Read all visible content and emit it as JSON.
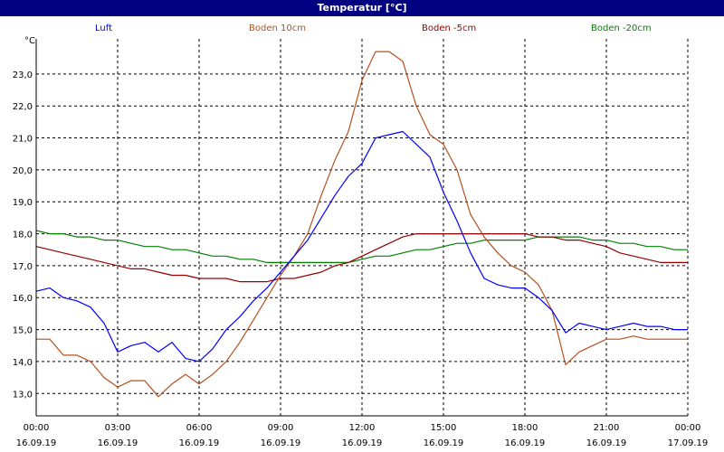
{
  "window": {
    "title": "Temperatur [°C]"
  },
  "colors": {
    "luft": "#0000ff",
    "boden10": "#b4501e",
    "bodenM5": "#960000",
    "bodenM20": "#008000",
    "grid": "#000000",
    "titlebar": "#000080"
  },
  "chart_data": {
    "type": "line",
    "title": "Temperatur [°C]",
    "ylabel": "°C",
    "xlabel": "",
    "ylim": [
      12.3,
      24.1
    ],
    "xlim": [
      "2019-09-16 00:00",
      "2019-09-17 00:00"
    ],
    "grid": true,
    "legend_placement": "top",
    "y_ticks": [
      "13,0",
      "14,0",
      "15,0",
      "16,0",
      "17,0",
      "18,0",
      "19,0",
      "20,0",
      "21,0",
      "22,0",
      "23,0"
    ],
    "x_ticks": [
      {
        "time": "00:00",
        "date": "16.09.19"
      },
      {
        "time": "03:00",
        "date": "16.09.19"
      },
      {
        "time": "06:00",
        "date": "16.09.19"
      },
      {
        "time": "09:00",
        "date": "16.09.19"
      },
      {
        "time": "12:00",
        "date": "16.09.19"
      },
      {
        "time": "15:00",
        "date": "16.09.19"
      },
      {
        "time": "18:00",
        "date": "16.09.19"
      },
      {
        "time": "21:00",
        "date": "16.09.19"
      },
      {
        "time": "00:00",
        "date": "17.09.19"
      }
    ],
    "series": [
      {
        "name": "Luft",
        "color": "#0000ff",
        "x": [
          "2019-09-16 00:00",
          "2019-09-16 00:30",
          "2019-09-16 01:00",
          "2019-09-16 01:30",
          "2019-09-16 02:00",
          "2019-09-16 02:30",
          "2019-09-16 03:00",
          "2019-09-16 03:30",
          "2019-09-16 04:00",
          "2019-09-16 04:30",
          "2019-09-16 05:00",
          "2019-09-16 05:30",
          "2019-09-16 06:00",
          "2019-09-16 06:30",
          "2019-09-16 07:00",
          "2019-09-16 07:30",
          "2019-09-16 08:00",
          "2019-09-16 08:30",
          "2019-09-16 09:00",
          "2019-09-16 09:30",
          "2019-09-16 10:00",
          "2019-09-16 10:30",
          "2019-09-16 11:00",
          "2019-09-16 11:30",
          "2019-09-16 12:00",
          "2019-09-16 12:30",
          "2019-09-16 13:00",
          "2019-09-16 13:30",
          "2019-09-16 14:00",
          "2019-09-16 14:30",
          "2019-09-16 15:00",
          "2019-09-16 15:30",
          "2019-09-16 16:00",
          "2019-09-16 16:30",
          "2019-09-16 17:00",
          "2019-09-16 17:30",
          "2019-09-16 18:00",
          "2019-09-16 18:30",
          "2019-09-16 19:00",
          "2019-09-16 19:30",
          "2019-09-16 20:00",
          "2019-09-16 20:30",
          "2019-09-16 21:00",
          "2019-09-16 21:30",
          "2019-09-16 22:00",
          "2019-09-16 22:30",
          "2019-09-16 23:00",
          "2019-09-16 23:30",
          "2019-09-17 00:00"
        ],
        "values": [
          16.2,
          16.3,
          16.0,
          15.9,
          15.7,
          15.2,
          14.3,
          14.5,
          14.6,
          14.3,
          14.6,
          14.1,
          14.0,
          14.4,
          15.0,
          15.4,
          15.9,
          16.3,
          16.8,
          17.3,
          17.8,
          18.5,
          19.2,
          19.8,
          20.2,
          21.0,
          21.1,
          21.2,
          20.8,
          20.4,
          19.3,
          18.4,
          17.4,
          16.6,
          16.4,
          16.3,
          16.3,
          16.0,
          15.6,
          14.9,
          15.2,
          15.1,
          15.0,
          15.1,
          15.2,
          15.1,
          15.1,
          15.0,
          15.0
        ]
      },
      {
        "name": "Boden 10cm",
        "color": "#b4501e",
        "x": [
          "2019-09-16 00:00",
          "2019-09-16 00:30",
          "2019-09-16 01:00",
          "2019-09-16 01:30",
          "2019-09-16 02:00",
          "2019-09-16 02:30",
          "2019-09-16 03:00",
          "2019-09-16 03:30",
          "2019-09-16 04:00",
          "2019-09-16 04:30",
          "2019-09-16 05:00",
          "2019-09-16 05:30",
          "2019-09-16 06:00",
          "2019-09-16 06:30",
          "2019-09-16 07:00",
          "2019-09-16 07:30",
          "2019-09-16 08:00",
          "2019-09-16 08:30",
          "2019-09-16 09:00",
          "2019-09-16 09:30",
          "2019-09-16 10:00",
          "2019-09-16 10:30",
          "2019-09-16 11:00",
          "2019-09-16 11:30",
          "2019-09-16 12:00",
          "2019-09-16 12:30",
          "2019-09-16 13:00",
          "2019-09-16 13:30",
          "2019-09-16 14:00",
          "2019-09-16 14:30",
          "2019-09-16 15:00",
          "2019-09-16 15:30",
          "2019-09-16 16:00",
          "2019-09-16 16:30",
          "2019-09-16 17:00",
          "2019-09-16 17:30",
          "2019-09-16 18:00",
          "2019-09-16 18:30",
          "2019-09-16 19:00",
          "2019-09-16 19:30",
          "2019-09-16 20:00",
          "2019-09-16 20:30",
          "2019-09-16 21:00",
          "2019-09-16 21:30",
          "2019-09-16 22:00",
          "2019-09-16 22:30",
          "2019-09-16 23:00",
          "2019-09-16 23:30",
          "2019-09-17 00:00"
        ],
        "values": [
          14.7,
          14.7,
          14.2,
          14.2,
          14.0,
          13.5,
          13.2,
          13.4,
          13.4,
          12.9,
          13.3,
          13.6,
          13.3,
          13.6,
          14.0,
          14.6,
          15.3,
          16.0,
          16.7,
          17.3,
          18.0,
          19.2,
          20.3,
          21.2,
          22.8,
          23.7,
          23.7,
          23.4,
          22.0,
          21.1,
          20.8,
          20.0,
          18.6,
          17.9,
          17.4,
          17.0,
          16.8,
          16.4,
          15.6,
          13.9,
          14.3,
          14.5,
          14.7,
          14.7,
          14.8,
          14.7,
          14.7,
          14.7,
          14.7
        ]
      },
      {
        "name": "Boden -5cm",
        "color": "#960000",
        "x": [
          "2019-09-16 00:00",
          "2019-09-16 00:30",
          "2019-09-16 01:00",
          "2019-09-16 01:30",
          "2019-09-16 02:00",
          "2019-09-16 02:30",
          "2019-09-16 03:00",
          "2019-09-16 03:30",
          "2019-09-16 04:00",
          "2019-09-16 04:30",
          "2019-09-16 05:00",
          "2019-09-16 05:30",
          "2019-09-16 06:00",
          "2019-09-16 06:30",
          "2019-09-16 07:00",
          "2019-09-16 07:30",
          "2019-09-16 08:00",
          "2019-09-16 08:30",
          "2019-09-16 09:00",
          "2019-09-16 09:30",
          "2019-09-16 10:00",
          "2019-09-16 10:30",
          "2019-09-16 11:00",
          "2019-09-16 11:30",
          "2019-09-16 12:00",
          "2019-09-16 12:30",
          "2019-09-16 13:00",
          "2019-09-16 13:30",
          "2019-09-16 14:00",
          "2019-09-16 14:30",
          "2019-09-16 15:00",
          "2019-09-16 15:30",
          "2019-09-16 16:00",
          "2019-09-16 16:30",
          "2019-09-16 17:00",
          "2019-09-16 17:30",
          "2019-09-16 18:00",
          "2019-09-16 18:30",
          "2019-09-16 19:00",
          "2019-09-16 19:30",
          "2019-09-16 20:00",
          "2019-09-16 20:30",
          "2019-09-16 21:00",
          "2019-09-16 21:30",
          "2019-09-16 22:00",
          "2019-09-16 22:30",
          "2019-09-16 23:00",
          "2019-09-16 23:30",
          "2019-09-17 00:00"
        ],
        "values": [
          17.6,
          17.5,
          17.4,
          17.3,
          17.2,
          17.1,
          17.0,
          16.9,
          16.9,
          16.8,
          16.7,
          16.7,
          16.6,
          16.6,
          16.6,
          16.5,
          16.5,
          16.5,
          16.6,
          16.6,
          16.7,
          16.8,
          17.0,
          17.1,
          17.3,
          17.5,
          17.7,
          17.9,
          18.0,
          18.0,
          18.0,
          18.0,
          18.0,
          18.0,
          18.0,
          18.0,
          18.0,
          17.9,
          17.9,
          17.8,
          17.8,
          17.7,
          17.6,
          17.4,
          17.3,
          17.2,
          17.1,
          17.1,
          17.1
        ]
      },
      {
        "name": "Boden -20cm",
        "color": "#008000",
        "x": [
          "2019-09-16 00:00",
          "2019-09-16 00:30",
          "2019-09-16 01:00",
          "2019-09-16 01:30",
          "2019-09-16 02:00",
          "2019-09-16 02:30",
          "2019-09-16 03:00",
          "2019-09-16 03:30",
          "2019-09-16 04:00",
          "2019-09-16 04:30",
          "2019-09-16 05:00",
          "2019-09-16 05:30",
          "2019-09-16 06:00",
          "2019-09-16 06:30",
          "2019-09-16 07:00",
          "2019-09-16 07:30",
          "2019-09-16 08:00",
          "2019-09-16 08:30",
          "2019-09-16 09:00",
          "2019-09-16 09:30",
          "2019-09-16 10:00",
          "2019-09-16 10:30",
          "2019-09-16 11:00",
          "2019-09-16 11:30",
          "2019-09-16 12:00",
          "2019-09-16 12:30",
          "2019-09-16 13:00",
          "2019-09-16 13:30",
          "2019-09-16 14:00",
          "2019-09-16 14:30",
          "2019-09-16 15:00",
          "2019-09-16 15:30",
          "2019-09-16 16:00",
          "2019-09-16 16:30",
          "2019-09-16 17:00",
          "2019-09-16 17:30",
          "2019-09-16 18:00",
          "2019-09-16 18:30",
          "2019-09-16 19:00",
          "2019-09-16 19:30",
          "2019-09-16 20:00",
          "2019-09-16 20:30",
          "2019-09-16 21:00",
          "2019-09-16 21:30",
          "2019-09-16 22:00",
          "2019-09-16 22:30",
          "2019-09-16 23:00",
          "2019-09-16 23:30",
          "2019-09-17 00:00"
        ],
        "values": [
          18.1,
          18.0,
          18.0,
          17.9,
          17.9,
          17.8,
          17.8,
          17.7,
          17.6,
          17.6,
          17.5,
          17.5,
          17.4,
          17.3,
          17.3,
          17.2,
          17.2,
          17.1,
          17.1,
          17.1,
          17.1,
          17.1,
          17.1,
          17.1,
          17.2,
          17.3,
          17.3,
          17.4,
          17.5,
          17.5,
          17.6,
          17.7,
          17.7,
          17.8,
          17.8,
          17.8,
          17.8,
          17.9,
          17.9,
          17.9,
          17.9,
          17.8,
          17.8,
          17.7,
          17.7,
          17.6,
          17.6,
          17.5,
          17.5
        ]
      }
    ]
  }
}
